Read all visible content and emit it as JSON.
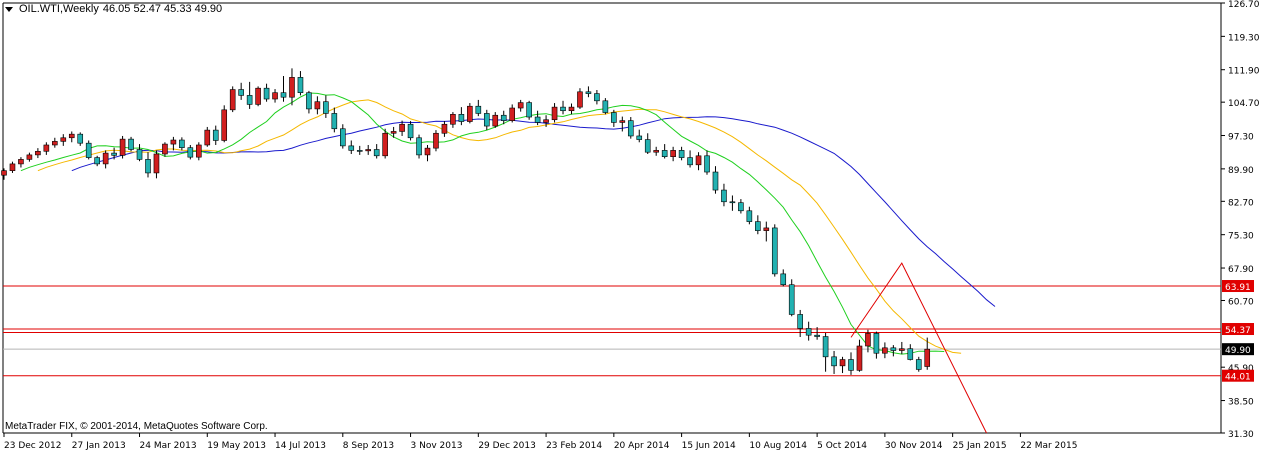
{
  "header": {
    "symbol": "OIL.WTI,Weekly",
    "ohlc": "46.05 52.47 45.33 49.90"
  },
  "copyright": "MetaTrader FIX, © 2001-2014, MetaQuotes Software Corp.",
  "colors": {
    "bull_fill": "#d11f1f",
    "bear_fill": "#22b1b1",
    "ma_fast": "#1fd01f",
    "ma_mid": "#f5b800",
    "ma_slow": "#1a1acc",
    "hline": "#e00000",
    "projection": "#e00000"
  },
  "chart_data": {
    "type": "candlestick",
    "timeframe": "Weekly",
    "ylim": [
      31.3,
      126.7
    ],
    "y_ticks": [
      "126.70",
      "119.30",
      "111.90",
      "104.70",
      "97.30",
      "89.90",
      "82.70",
      "75.30",
      "67.90",
      "60.70",
      "45.90",
      "38.50",
      "31.30"
    ],
    "x_ticks": [
      "23 Dec 2012",
      "27 Jan 2013",
      "24 Mar 2013",
      "19 May 2013",
      "14 Jul 2013",
      "8 Sep 2013",
      "3 Nov 2013",
      "29 Dec 2013",
      "23 Feb 2014",
      "20 Apr 2014",
      "15 Jun 2014",
      "10 Aug 2014",
      "5 Oct 2014",
      "30 Nov 2014",
      "25 Jan 2015",
      "22 Mar 2015"
    ],
    "price_labels": [
      {
        "text": "63.91",
        "style": "red"
      },
      {
        "text": "54.37",
        "style": "red"
      },
      {
        "text": "49.90",
        "style": "current"
      },
      {
        "text": "44.01",
        "style": "red"
      }
    ],
    "horizontal_lines": [
      63.91,
      54.37,
      53.6,
      44.01
    ],
    "candles": [
      [
        88.5,
        90.0,
        87.5,
        89.5
      ],
      [
        89.5,
        91.5,
        89.0,
        91.0
      ],
      [
        91.0,
        92.5,
        90.2,
        92.0
      ],
      [
        92.0,
        93.5,
        91.5,
        93.0
      ],
      [
        93.0,
        94.5,
        92.3,
        93.8
      ],
      [
        93.8,
        95.8,
        93.0,
        95.2
      ],
      [
        95.2,
        96.8,
        94.6,
        96.0
      ],
      [
        96.0,
        97.6,
        95.0,
        96.8
      ],
      [
        96.8,
        98.2,
        95.8,
        97.6
      ],
      [
        97.6,
        98.0,
        95.0,
        95.6
      ],
      [
        95.6,
        96.2,
        92.0,
        92.4
      ],
      [
        92.4,
        92.8,
        90.5,
        91.0
      ],
      [
        91.0,
        94.0,
        90.0,
        93.4
      ],
      [
        93.4,
        94.6,
        92.0,
        92.9
      ],
      [
        92.9,
        97.2,
        92.2,
        96.5
      ],
      [
        96.5,
        97.0,
        93.8,
        94.2
      ],
      [
        94.2,
        95.4,
        91.6,
        92.0
      ],
      [
        92.0,
        93.6,
        88.0,
        89.0
      ],
      [
        89.0,
        94.0,
        87.8,
        93.2
      ],
      [
        93.2,
        95.8,
        92.6,
        95.4
      ],
      [
        95.4,
        97.0,
        94.0,
        96.3
      ],
      [
        96.3,
        96.9,
        94.0,
        94.6
      ],
      [
        94.6,
        95.2,
        92.0,
        92.5
      ],
      [
        92.5,
        95.8,
        91.8,
        95.2
      ],
      [
        95.2,
        99.2,
        94.8,
        98.5
      ],
      [
        98.5,
        99.5,
        95.2,
        96.2
      ],
      [
        96.2,
        104.0,
        95.8,
        103.0
      ],
      [
        103.0,
        108.2,
        102.5,
        107.5
      ],
      [
        107.5,
        109.0,
        105.2,
        106.2
      ],
      [
        106.2,
        109.2,
        103.2,
        104.2
      ],
      [
        104.2,
        108.2,
        103.8,
        107.8
      ],
      [
        107.8,
        108.8,
        104.8,
        105.4
      ],
      [
        105.4,
        107.6,
        104.6,
        106.8
      ],
      [
        106.8,
        110.5,
        104.8,
        105.8
      ],
      [
        105.8,
        112.2,
        104.0,
        110.2
      ],
      [
        110.2,
        111.6,
        106.2,
        106.8
      ],
      [
        106.8,
        107.2,
        102.2,
        103.2
      ],
      [
        103.2,
        106.0,
        102.0,
        104.8
      ],
      [
        104.8,
        106.2,
        101.2,
        102.2
      ],
      [
        102.2,
        103.5,
        98.0,
        98.8
      ],
      [
        98.8,
        99.8,
        94.4,
        95.0
      ],
      [
        95.0,
        96.2,
        93.2,
        94.0
      ],
      [
        94.0,
        95.0,
        93.0,
        93.9
      ],
      [
        93.9,
        95.2,
        93.0,
        94.2
      ],
      [
        94.2,
        95.4,
        92.2,
        92.8
      ],
      [
        92.8,
        98.8,
        92.2,
        97.8
      ],
      [
        97.8,
        99.2,
        96.8,
        98.2
      ],
      [
        98.2,
        100.6,
        97.2,
        99.8
      ],
      [
        99.8,
        100.5,
        96.2,
        96.8
      ],
      [
        96.8,
        97.5,
        92.2,
        93.0
      ],
      [
        93.0,
        95.2,
        91.6,
        94.5
      ],
      [
        94.5,
        98.5,
        93.8,
        97.8
      ],
      [
        97.8,
        100.5,
        97.0,
        99.8
      ],
      [
        99.8,
        102.5,
        99.0,
        102.0
      ],
      [
        102.0,
        103.6,
        99.6,
        100.4
      ],
      [
        100.4,
        104.5,
        100.0,
        103.8
      ],
      [
        103.8,
        105.2,
        101.6,
        102.2
      ],
      [
        102.2,
        103.0,
        98.5,
        99.4
      ],
      [
        99.4,
        102.5,
        99.0,
        101.8
      ],
      [
        101.8,
        102.8,
        99.8,
        100.6
      ],
      [
        100.6,
        104.2,
        100.2,
        103.4
      ],
      [
        103.4,
        105.2,
        102.6,
        104.6
      ],
      [
        104.6,
        105.0,
        100.8,
        101.4
      ],
      [
        101.4,
        102.8,
        99.6,
        100.2
      ],
      [
        100.2,
        101.8,
        99.2,
        100.8
      ],
      [
        100.8,
        104.5,
        100.2,
        103.6
      ],
      [
        103.6,
        105.0,
        102.0,
        102.8
      ],
      [
        102.8,
        104.4,
        102.0,
        103.6
      ],
      [
        103.6,
        107.8,
        103.2,
        107.0
      ],
      [
        107.0,
        108.2,
        105.8,
        106.6
      ],
      [
        106.6,
        107.4,
        104.2,
        105.0
      ],
      [
        105.0,
        105.6,
        102.0,
        102.4
      ],
      [
        102.4,
        103.0,
        99.2,
        100.2
      ],
      [
        100.2,
        101.5,
        98.2,
        100.6
      ],
      [
        100.6,
        101.4,
        96.6,
        97.2
      ],
      [
        97.2,
        98.6,
        95.8,
        96.4
      ],
      [
        96.4,
        97.8,
        93.2,
        93.6
      ],
      [
        93.6,
        94.8,
        92.8,
        94.0
      ],
      [
        94.0,
        95.4,
        92.2,
        92.6
      ],
      [
        92.6,
        94.8,
        91.6,
        94.0
      ],
      [
        94.0,
        94.8,
        91.8,
        92.4
      ],
      [
        92.4,
        94.0,
        90.2,
        90.8
      ],
      [
        90.8,
        93.6,
        89.6,
        92.8
      ],
      [
        92.8,
        94.0,
        88.6,
        89.2
      ],
      [
        89.2,
        90.5,
        84.4,
        85.2
      ],
      [
        85.2,
        86.6,
        81.6,
        82.6
      ],
      [
        82.6,
        84.0,
        80.6,
        82.4
      ],
      [
        82.4,
        83.2,
        80.0,
        80.6
      ],
      [
        80.6,
        81.5,
        77.6,
        78.2
      ],
      [
        78.2,
        79.6,
        75.4,
        76.2
      ],
      [
        76.2,
        78.2,
        73.8,
        76.8
      ],
      [
        76.8,
        77.6,
        66.0,
        66.6
      ],
      [
        66.6,
        67.6,
        63.8,
        64.2
      ],
      [
        64.2,
        65.4,
        57.2,
        57.6
      ],
      [
        57.6,
        58.6,
        52.6,
        54.5
      ],
      [
        54.5,
        56.0,
        51.8,
        53.0
      ],
      [
        53.0,
        54.8,
        52.0,
        52.7
      ],
      [
        52.7,
        53.5,
        44.9,
        48.2
      ],
      [
        48.2,
        49.5,
        44.4,
        46.2
      ],
      [
        46.2,
        48.2,
        44.6,
        47.6
      ],
      [
        47.6,
        49.2,
        44.2,
        45.2
      ],
      [
        45.2,
        52.0,
        44.9,
        50.6
      ],
      [
        50.6,
        54.2,
        49.2,
        53.4
      ],
      [
        53.4,
        53.8,
        47.8,
        49.0
      ],
      [
        49.0,
        51.4,
        47.9,
        50.2
      ],
      [
        50.2,
        50.8,
        48.3,
        49.6
      ],
      [
        49.6,
        51.5,
        48.8,
        50.0
      ],
      [
        50.0,
        51.0,
        47.4,
        47.6
      ],
      [
        47.6,
        48.2,
        44.9,
        45.4
      ],
      [
        46.05,
        52.47,
        45.33,
        49.9
      ]
    ],
    "projection": [
      [
        100,
        52.5
      ],
      [
        106,
        69.0
      ],
      [
        116,
        31.3
      ]
    ]
  }
}
